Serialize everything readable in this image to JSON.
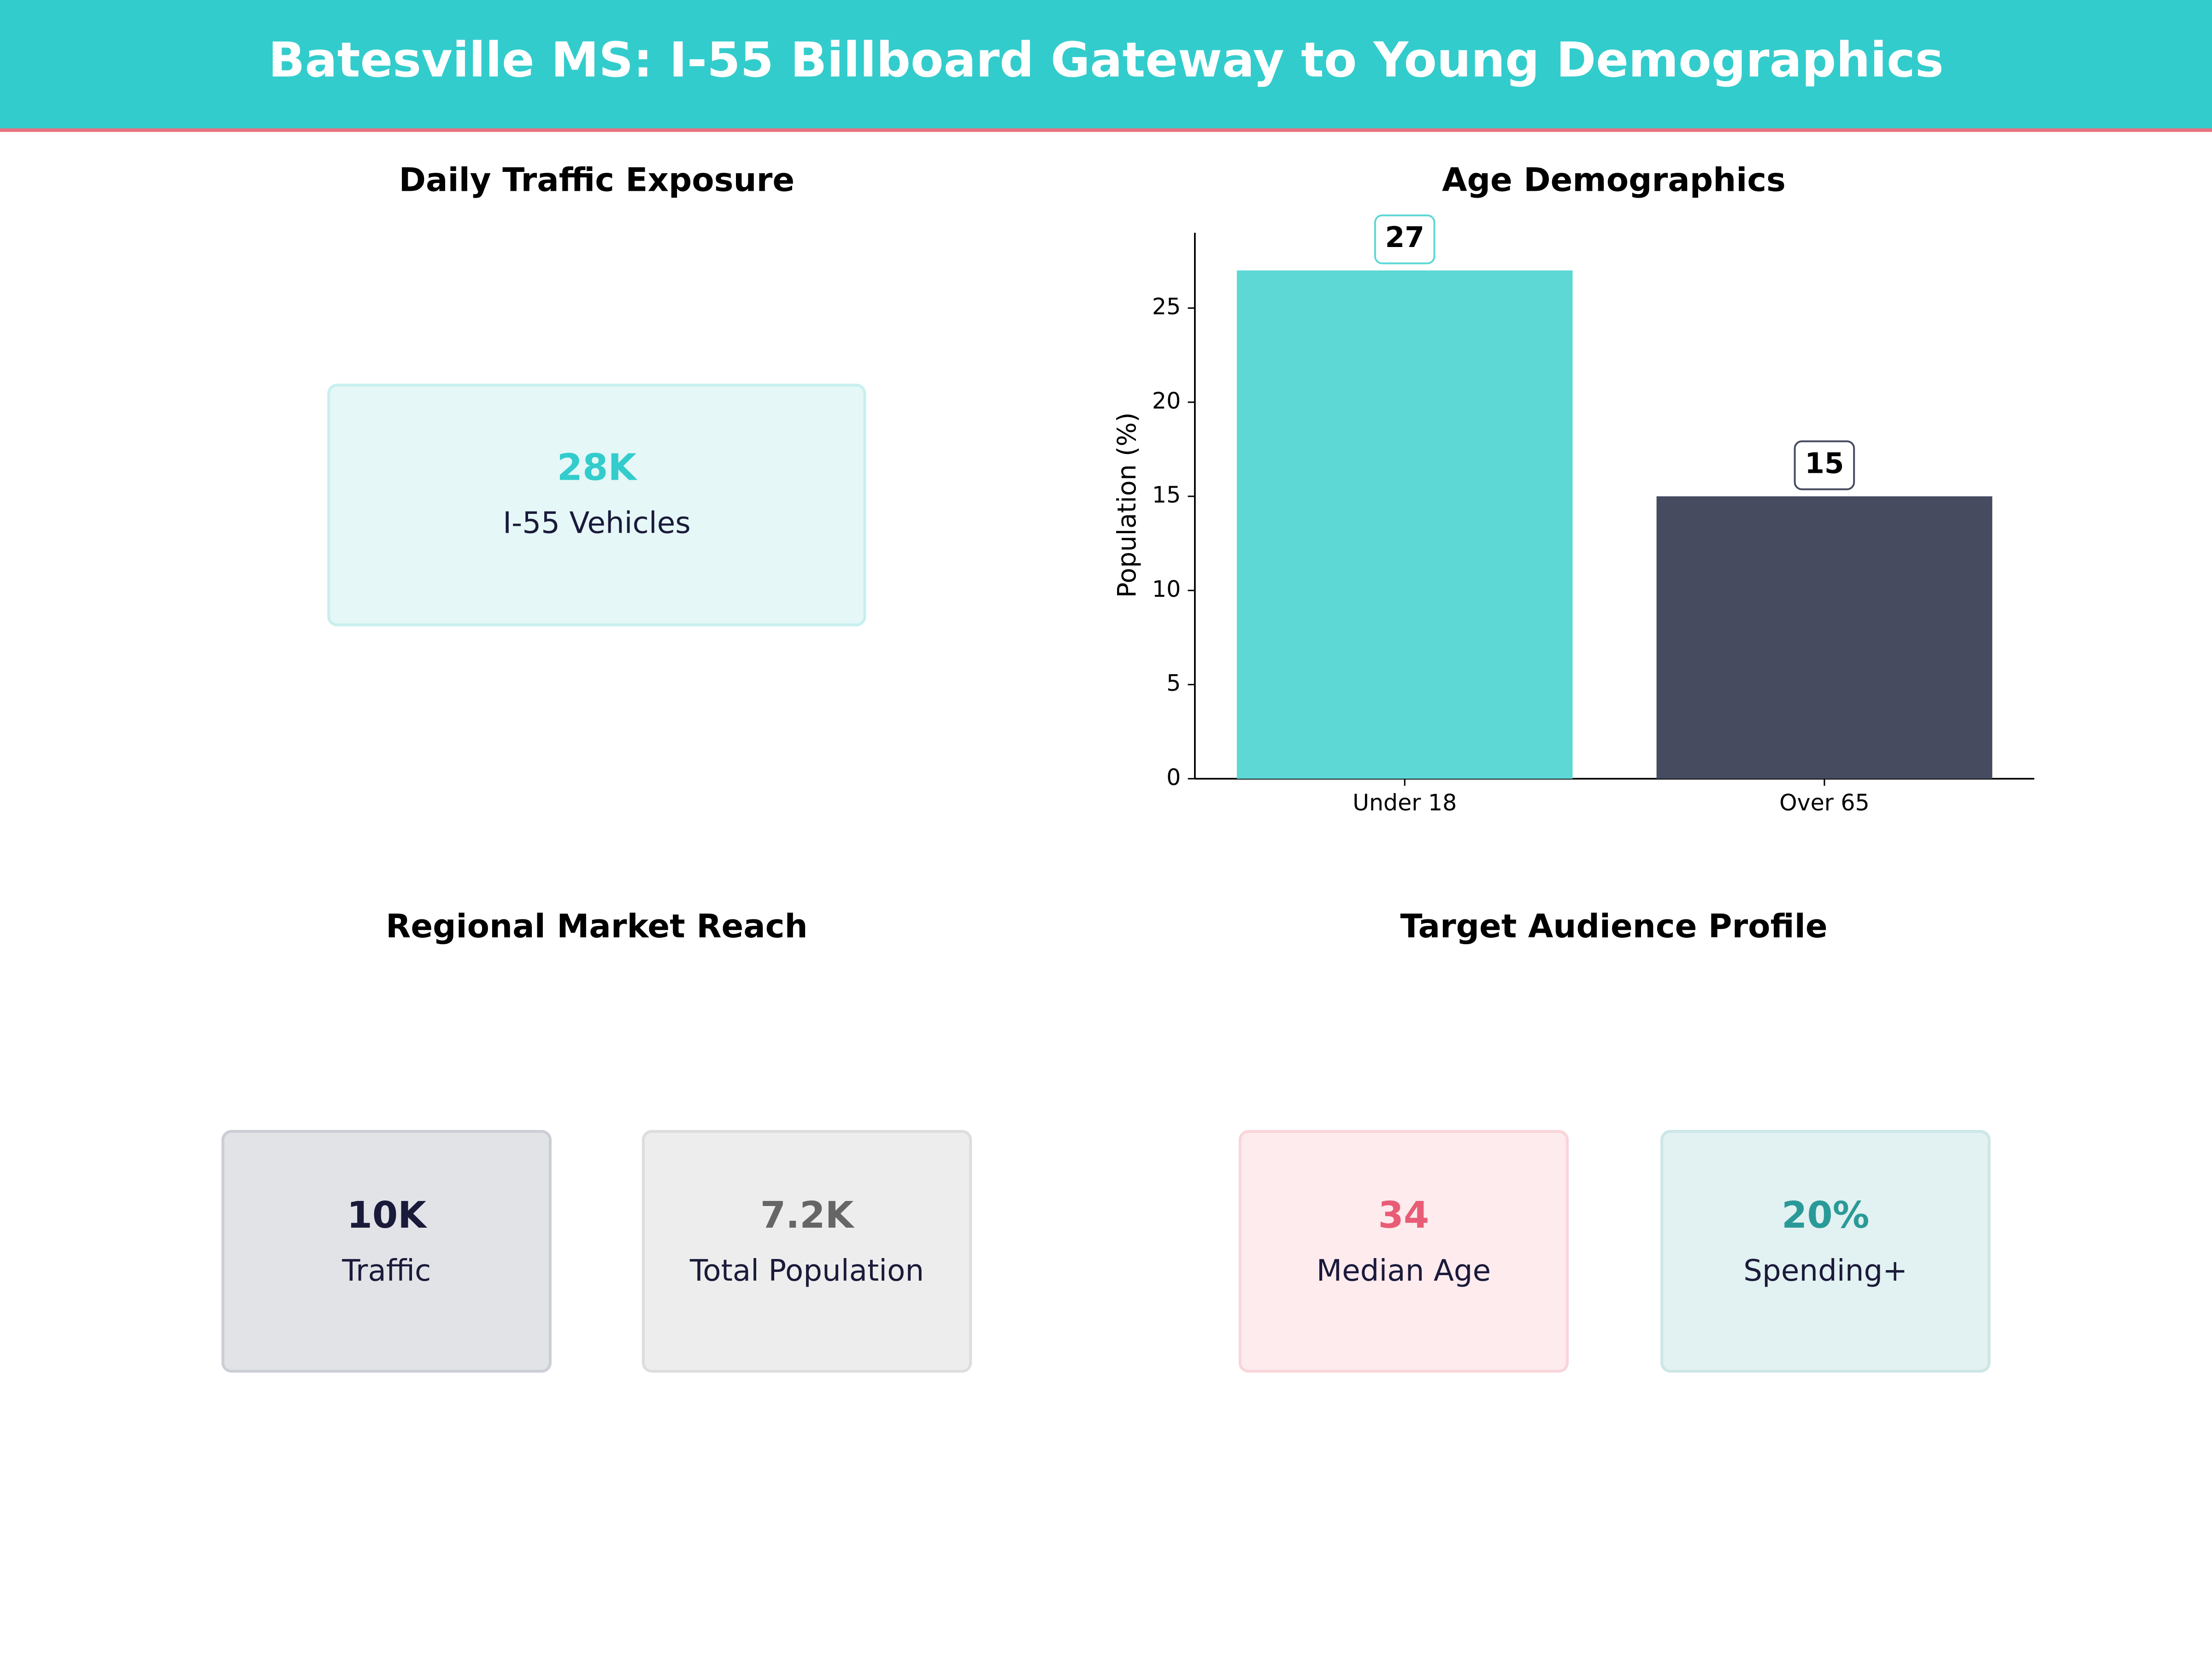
{
  "header": {
    "title": "Batesville MS: I-55 Billboard Gateway to Young Demographics"
  },
  "traffic": {
    "title": "Daily Traffic Exposure",
    "cards": [
      {
        "value": "28K",
        "label": "I-55 Vehicles"
      }
    ]
  },
  "chart_data": {
    "type": "bar",
    "title": "Age Demographics",
    "ylabel": "Population (%)",
    "categories": [
      "Under 18",
      "Over 65"
    ],
    "values": [
      27,
      15
    ],
    "colors": [
      "#5dd8d5",
      "#474b60"
    ],
    "label_borders": [
      "#5dd8d5",
      "#474b60"
    ],
    "ylim": [
      0,
      29
    ],
    "yticks": [
      0,
      5,
      10,
      15,
      20,
      25
    ]
  },
  "market": {
    "title": "Regional Market Reach",
    "cards": [
      {
        "value": "10K",
        "label": "Traffic"
      },
      {
        "value": "7.2K",
        "label": "Total Population"
      }
    ]
  },
  "audience": {
    "title": "Target Audience Profile",
    "cards": [
      {
        "value": "34",
        "label": "Median Age"
      },
      {
        "value": "20%",
        "label": "Spending+"
      }
    ]
  }
}
